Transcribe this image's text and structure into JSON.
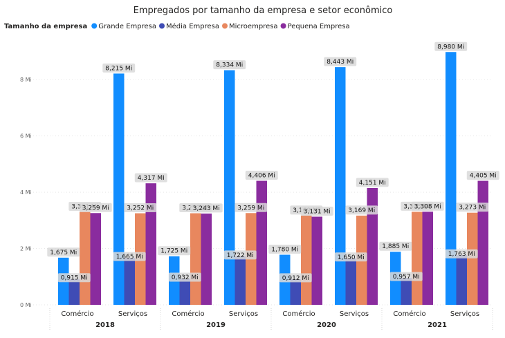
{
  "chart_data": {
    "type": "bar",
    "title": "Empregados por tamanho da empresa e setor econômico",
    "legend": {
      "title": "Tamanho da empresa",
      "placement": "top-left"
    },
    "xlabel": "",
    "ylabel": "",
    "ylim": [
      0,
      9.6
    ],
    "yticks": [
      {
        "value": 0,
        "label": "0 Mi"
      },
      {
        "value": 2,
        "label": "2 Mi"
      },
      {
        "value": 4,
        "label": "4 Mi"
      },
      {
        "value": 6,
        "label": "6 Mi"
      },
      {
        "value": 8,
        "label": "8 Mi"
      }
    ],
    "groups": [
      {
        "year": "2018",
        "categories": [
          "Comércio",
          "Serviços"
        ]
      },
      {
        "year": "2019",
        "categories": [
          "Comércio",
          "Serviços"
        ]
      },
      {
        "year": "2020",
        "categories": [
          "Comércio",
          "Serviços"
        ]
      },
      {
        "year": "2021",
        "categories": [
          "Comércio",
          "Serviços"
        ]
      }
    ],
    "series": [
      {
        "name": "Grande Empresa",
        "color": "#118DFF",
        "values": [
          1.675,
          8.215,
          1.725,
          8.334,
          1.78,
          8.443,
          1.885,
          8.98
        ],
        "labels": [
          "1,675 Mi",
          "8,215 Mi",
          "1,725 Mi",
          "8,334 Mi",
          "1,780 Mi",
          "8,443 Mi",
          "1,885 Mi",
          "8,980 Mi"
        ]
      },
      {
        "name": "Média Empresa",
        "color": "#3F4CB5",
        "values": [
          0.915,
          1.665,
          0.932,
          1.722,
          0.912,
          1.65,
          0.957,
          1.763
        ],
        "labels": [
          "0,915 Mi",
          "1,665 Mi",
          "0,932 Mi",
          "1,722 Mi",
          "0,912 Mi",
          "1,650 Mi",
          "0,957 Mi",
          "1,763 Mi"
        ]
      },
      {
        "name": "Microempresa",
        "color": "#E8875E",
        "values": [
          3.301,
          3.252,
          3.253,
          3.259,
          3.169,
          3.169,
          3.305,
          3.273
        ],
        "labels": [
          "3,301 Mi",
          "3,252 Mi",
          "3,253 Mi",
          "3,259 Mi",
          "3,169 Mi",
          "3,169 Mi",
          "3,305 Mi",
          "3,273 Mi"
        ]
      },
      {
        "name": "Pequena Empresa",
        "color": "#8A2C9E",
        "values": [
          3.259,
          4.317,
          3.243,
          4.406,
          3.131,
          4.151,
          3.308,
          4.405
        ],
        "labels": [
          "3,259 Mi",
          "4,317 Mi",
          "3,243 Mi",
          "4,406 Mi",
          "3,131 Mi",
          "4,151 Mi",
          "3,308 Mi",
          "4,405 Mi"
        ]
      }
    ],
    "grid": true
  }
}
